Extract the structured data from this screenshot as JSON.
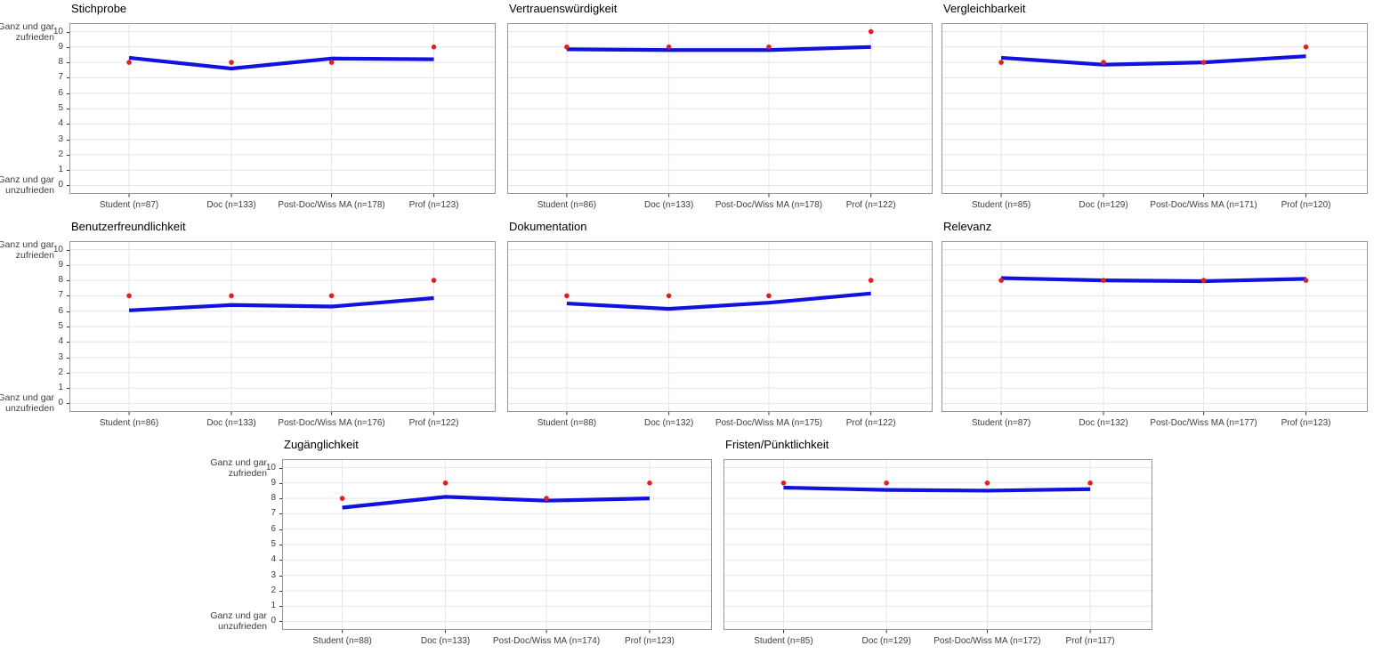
{
  "y_axis": {
    "top_label_line1": "Ganz und gar",
    "top_label_line2": "zufrieden",
    "bottom_label_line1": "Ganz und gar",
    "bottom_label_line2": "unzufrieden",
    "ticks": [
      10,
      9,
      8,
      7,
      6,
      5,
      4,
      3,
      2,
      1,
      0
    ],
    "range": [
      0,
      10
    ]
  },
  "colors": {
    "mean_line": "#1212e0",
    "median_point": "#e02020",
    "gridline": "#e5e5e5",
    "panel_border": "#969696",
    "axis_text": "#3d3d3d",
    "title_text": "#000000",
    "background": "#ffffff"
  },
  "chart_data": [
    {
      "type": "line",
      "title": "Stichprobe",
      "categories": [
        "Student (n=87)",
        "Doc (n=133)",
        "Post-Doc/Wiss MA (n=178)",
        "Prof (n=123)"
      ],
      "series": [
        {
          "name": "mean-line",
          "type": "line",
          "color_key": "mean_line",
          "values": [
            8.3,
            7.6,
            8.25,
            8.2
          ]
        },
        {
          "name": "median-points",
          "type": "scatter",
          "color_key": "median_point",
          "values": [
            8,
            8,
            8,
            9
          ]
        }
      ],
      "ylim": [
        0,
        10
      ],
      "grid": true,
      "legend": false
    },
    {
      "type": "line",
      "title": "Vertrauenswürdigkeit",
      "categories": [
        "Student (n=86)",
        "Doc (n=133)",
        "Post-Doc/Wiss MA (n=178)",
        "Prof (n=122)"
      ],
      "series": [
        {
          "name": "mean-line",
          "type": "line",
          "color_key": "mean_line",
          "values": [
            8.85,
            8.8,
            8.8,
            9.0
          ]
        },
        {
          "name": "median-points",
          "type": "scatter",
          "color_key": "median_point",
          "values": [
            9,
            9,
            9,
            10
          ]
        }
      ],
      "ylim": [
        0,
        10
      ],
      "grid": true,
      "legend": false
    },
    {
      "type": "line",
      "title": "Vergleichbarkeit",
      "categories": [
        "Student (n=85)",
        "Doc (n=129)",
        "Post-Doc/Wiss MA (n=171)",
        "Prof (n=120)"
      ],
      "series": [
        {
          "name": "mean-line",
          "type": "line",
          "color_key": "mean_line",
          "values": [
            8.3,
            7.85,
            8.0,
            8.4
          ]
        },
        {
          "name": "median-points",
          "type": "scatter",
          "color_key": "median_point",
          "values": [
            8,
            8,
            8,
            9
          ]
        }
      ],
      "ylim": [
        0,
        10
      ],
      "grid": true,
      "legend": false
    },
    {
      "type": "line",
      "title": "Benutzerfreundlichkeit",
      "categories": [
        "Student (n=86)",
        "Doc (n=133)",
        "Post-Doc/Wiss MA (n=176)",
        "Prof (n=122)"
      ],
      "series": [
        {
          "name": "mean-line",
          "type": "line",
          "color_key": "mean_line",
          "values": [
            6.05,
            6.4,
            6.3,
            6.85
          ]
        },
        {
          "name": "median-points",
          "type": "scatter",
          "color_key": "median_point",
          "values": [
            7,
            7,
            7,
            8
          ]
        }
      ],
      "ylim": [
        0,
        10
      ],
      "grid": true,
      "legend": false
    },
    {
      "type": "line",
      "title": "Dokumentation",
      "categories": [
        "Student (n=88)",
        "Doc (n=132)",
        "Post-Doc/Wiss MA (n=175)",
        "Prof (n=122)"
      ],
      "series": [
        {
          "name": "mean-line",
          "type": "line",
          "color_key": "mean_line",
          "values": [
            6.5,
            6.15,
            6.55,
            7.15
          ]
        },
        {
          "name": "median-points",
          "type": "scatter",
          "color_key": "median_point",
          "values": [
            7,
            7,
            7,
            8
          ]
        }
      ],
      "ylim": [
        0,
        10
      ],
      "grid": true,
      "legend": false
    },
    {
      "type": "line",
      "title": "Relevanz",
      "categories": [
        "Student (n=87)",
        "Doc (n=132)",
        "Post-Doc/Wiss MA (n=177)",
        "Prof (n=123)"
      ],
      "series": [
        {
          "name": "mean-line",
          "type": "line",
          "color_key": "mean_line",
          "values": [
            8.15,
            8.0,
            7.95,
            8.1
          ]
        },
        {
          "name": "median-points",
          "type": "scatter",
          "color_key": "median_point",
          "values": [
            8,
            8,
            8,
            8
          ]
        }
      ],
      "ylim": [
        0,
        10
      ],
      "grid": true,
      "legend": false
    },
    {
      "type": "line",
      "title": "Zugänglichkeit",
      "categories": [
        "Student (n=88)",
        "Doc (n=133)",
        "Post-Doc/Wiss MA (n=174)",
        "Prof (n=123)"
      ],
      "series": [
        {
          "name": "mean-line",
          "type": "line",
          "color_key": "mean_line",
          "values": [
            7.4,
            8.1,
            7.85,
            8.0
          ]
        },
        {
          "name": "median-points",
          "type": "scatter",
          "color_key": "median_point",
          "values": [
            8,
            9,
            8,
            9
          ]
        }
      ],
      "ylim": [
        0,
        10
      ],
      "grid": true,
      "legend": false
    },
    {
      "type": "line",
      "title": "Fristen/Pünktlichkeit",
      "categories": [
        "Student (n=85)",
        "Doc (n=129)",
        "Post-Doc/Wiss MA (n=172)",
        "Prof (n=117)"
      ],
      "series": [
        {
          "name": "mean-line",
          "type": "line",
          "color_key": "mean_line",
          "values": [
            8.7,
            8.55,
            8.5,
            8.6
          ]
        },
        {
          "name": "median-points",
          "type": "scatter",
          "color_key": "median_point",
          "values": [
            9,
            9,
            9,
            9
          ]
        }
      ],
      "ylim": [
        0,
        10
      ],
      "grid": true,
      "legend": false
    }
  ]
}
